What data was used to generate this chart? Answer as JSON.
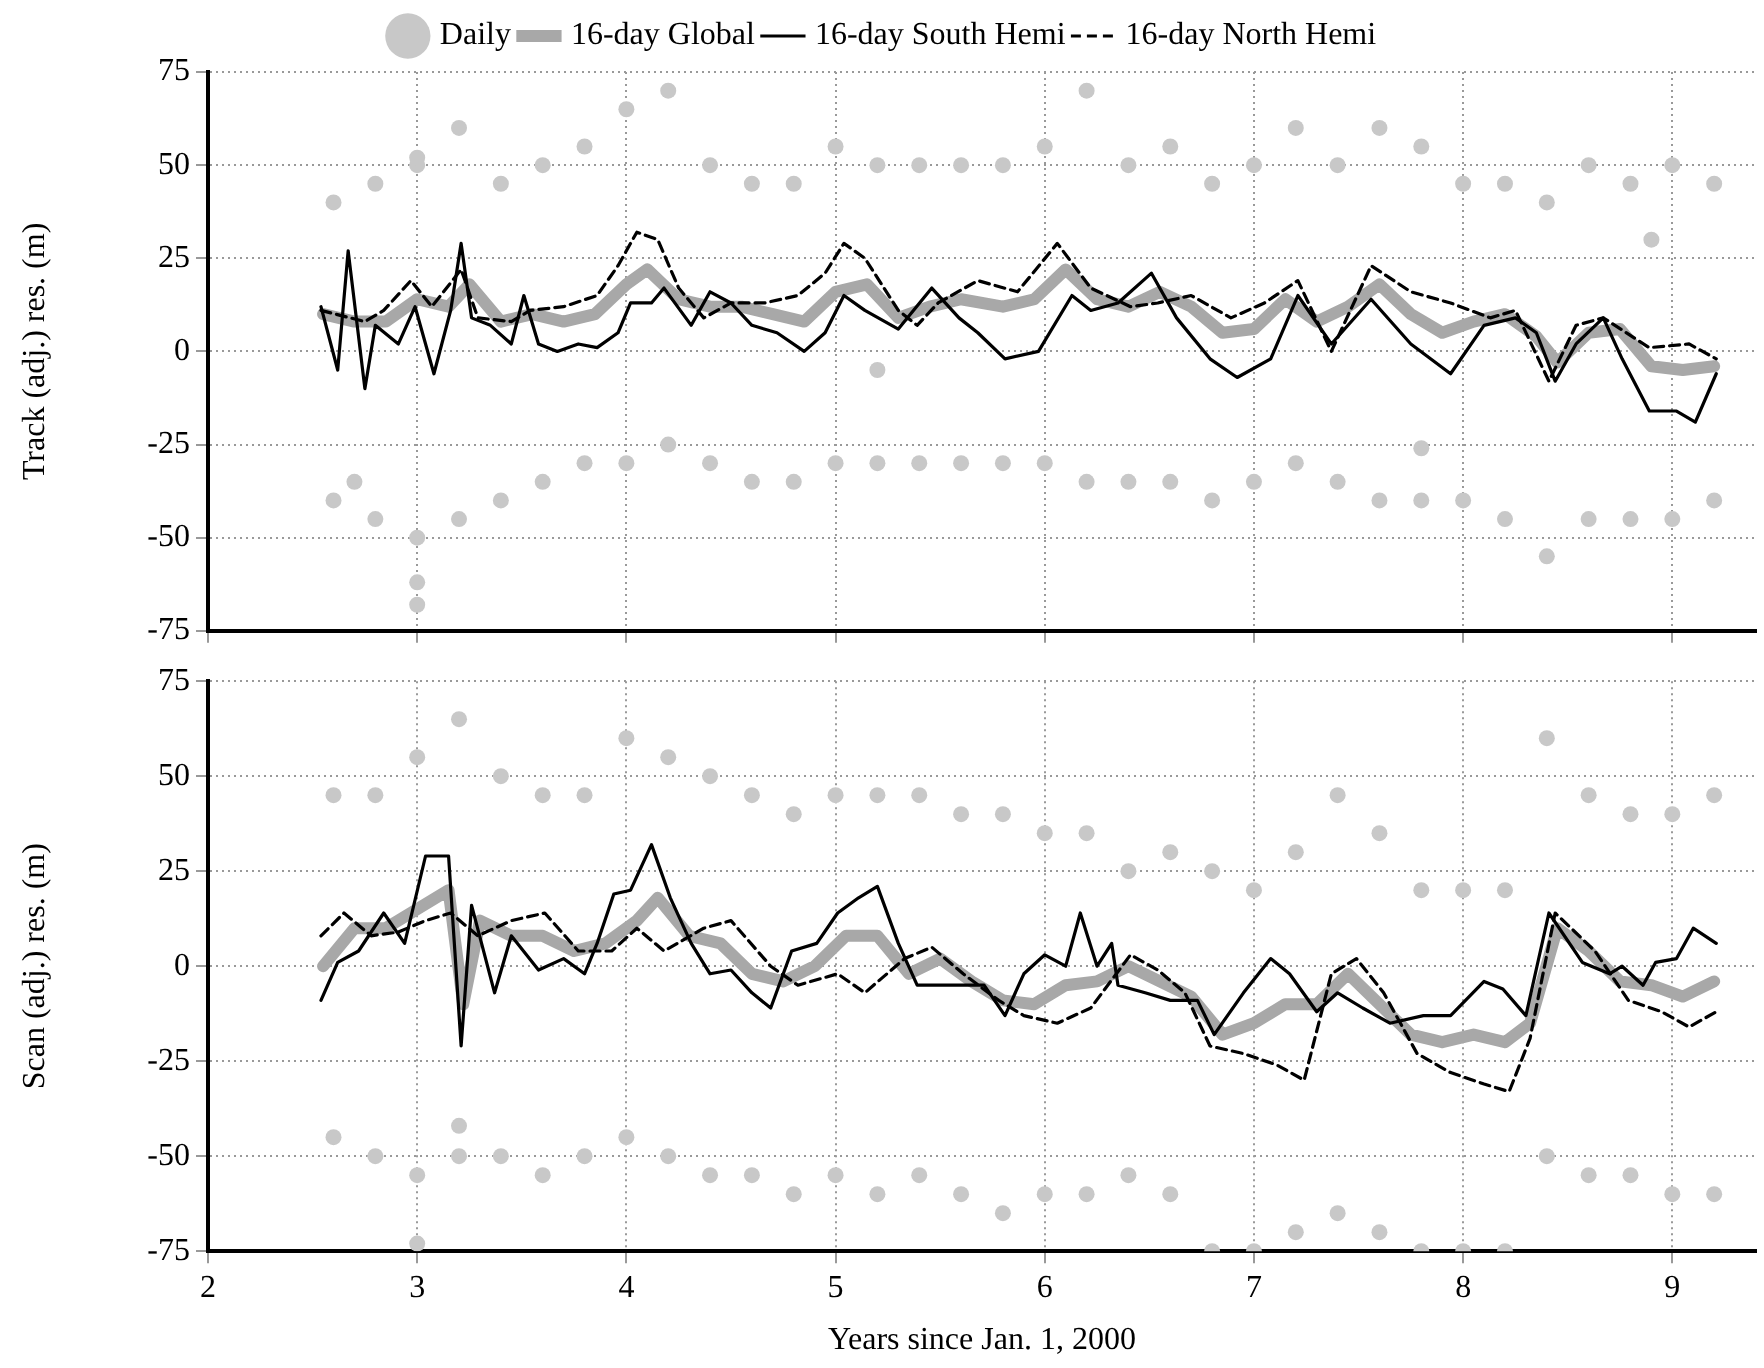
{
  "chart_data": [
    {
      "type": "line",
      "ylabel": "Track (adj.) res. (m)",
      "xlim": [
        2,
        9.4
      ],
      "xticks": [
        2,
        3,
        4,
        5,
        6,
        7,
        8,
        9
      ],
      "ylim": [
        -75,
        75
      ],
      "yticks": [
        -75,
        -50,
        -25,
        0,
        25,
        50,
        75
      ],
      "grid": true,
      "legend": "top",
      "tick_labels": "y",
      "series": [
        {
          "name": "Daily",
          "type": "scatter",
          "marker": "circle",
          "color": "#c8c8c8",
          "x": [
            2.6,
            2.6,
            2.8,
            2.8,
            3.0,
            3.0,
            3.2,
            3.2,
            3.4,
            3.4,
            3.6,
            3.6,
            3.8,
            3.8,
            4.0,
            4.0,
            4.2,
            4.2,
            4.4,
            4.4,
            4.6,
            4.6,
            4.8,
            4.8,
            5.0,
            5.0,
            5.2,
            5.2,
            5.4,
            5.4,
            5.6,
            5.6,
            5.8,
            5.8,
            6.0,
            6.0,
            6.2,
            6.2,
            6.4,
            6.4,
            6.6,
            6.6,
            6.8,
            6.8,
            7.0,
            7.0,
            7.2,
            7.2,
            7.4,
            7.4,
            7.6,
            7.6,
            7.8,
            7.8,
            8.0,
            8.0,
            8.2,
            8.2,
            8.4,
            8.4,
            8.6,
            8.6,
            8.8,
            8.8,
            9.0,
            9.0,
            9.2,
            9.2,
            3.0,
            3.0,
            3.0,
            2.7,
            7.8,
            8.9,
            5.2
          ],
          "values": [
            40,
            -40,
            45,
            -45,
            50,
            -50,
            60,
            -45,
            45,
            -40,
            50,
            -35,
            55,
            -30,
            65,
            -30,
            70,
            -25,
            50,
            -30,
            45,
            -35,
            45,
            -35,
            55,
            -30,
            50,
            -30,
            50,
            -30,
            50,
            -30,
            50,
            -30,
            55,
            -30,
            70,
            -35,
            50,
            -35,
            55,
            -35,
            45,
            -40,
            50,
            -35,
            60,
            -30,
            50,
            -35,
            60,
            -40,
            55,
            -40,
            45,
            -40,
            45,
            -45,
            40,
            -55,
            50,
            -45,
            45,
            -45,
            50,
            -45,
            45,
            -40,
            52,
            -62,
            -68,
            -35,
            -26,
            30,
            -5
          ]
        },
        {
          "name": "16-day Global",
          "color": "#a8a8a8",
          "marker": "none",
          "x": [
            2.55,
            2.7,
            2.85,
            3.0,
            3.15,
            3.25,
            3.4,
            3.55,
            3.7,
            3.85,
            4.0,
            4.1,
            4.25,
            4.4,
            4.55,
            4.7,
            4.85,
            5.0,
            5.15,
            5.3,
            5.45,
            5.6,
            5.8,
            5.95,
            6.1,
            6.25,
            6.4,
            6.55,
            6.7,
            6.85,
            7.0,
            7.15,
            7.3,
            7.45,
            7.6,
            7.75,
            7.9,
            8.05,
            8.2,
            8.35,
            8.45,
            8.6,
            8.75,
            8.9,
            9.05,
            9.2
          ],
          "values": [
            10,
            8,
            8,
            14,
            12,
            18,
            8,
            10,
            8,
            10,
            18,
            22,
            14,
            12,
            12,
            10,
            8,
            16,
            18,
            9,
            12,
            14,
            12,
            14,
            22,
            14,
            12,
            16,
            12,
            5,
            6,
            14,
            8,
            12,
            18,
            10,
            5,
            8,
            10,
            4,
            -3,
            5,
            6,
            -4,
            -5,
            -4
          ]
        },
        {
          "name": "16-day South Hemi",
          "color": "#000000",
          "marker": "none",
          "x": [
            2.54,
            2.62,
            2.67,
            2.75,
            2.8,
            2.91,
            2.99,
            3.08,
            3.16,
            3.21,
            3.26,
            3.35,
            3.45,
            3.51,
            3.58,
            3.67,
            3.77,
            3.86,
            3.96,
            4.02,
            4.12,
            4.18,
            4.31,
            4.4,
            4.5,
            4.6,
            4.72,
            4.85,
            4.95,
            5.04,
            5.14,
            5.3,
            5.46,
            5.59,
            5.68,
            5.81,
            5.97,
            6.13,
            6.22,
            6.35,
            6.51,
            6.63,
            6.79,
            6.92,
            7.08,
            7.21,
            7.37,
            7.56,
            7.75,
            7.94,
            8.1,
            8.25,
            8.35,
            8.44,
            8.54,
            8.67,
            8.76,
            8.89,
            9.02,
            9.11,
            9.21
          ],
          "values": [
            12,
            -5,
            27,
            -10,
            7,
            2,
            12,
            -6,
            11,
            29,
            9,
            7,
            2,
            15,
            2,
            0,
            2,
            1,
            5,
            13,
            13,
            17,
            7,
            16,
            13,
            7,
            5,
            0,
            5,
            15,
            11,
            6,
            17,
            9,
            5,
            -2,
            0,
            15,
            11,
            13,
            21,
            9,
            -2,
            -7,
            -2,
            15,
            2,
            14,
            2,
            -6,
            7,
            9,
            5,
            -8,
            2,
            9,
            -2,
            -16,
            -16,
            -19,
            -6
          ]
        },
        {
          "name": "16-day North Hemi",
          "color": "#000000",
          "marker": "none",
          "line_style": "dashed",
          "x": [
            2.54,
            2.75,
            2.84,
            2.97,
            3.07,
            3.21,
            3.29,
            3.45,
            3.54,
            3.7,
            3.86,
            3.96,
            4.05,
            4.15,
            4.25,
            4.37,
            4.5,
            4.66,
            4.82,
            4.95,
            5.04,
            5.14,
            5.3,
            5.39,
            5.49,
            5.68,
            5.87,
            6.06,
            6.22,
            6.41,
            6.54,
            6.7,
            6.89,
            7.05,
            7.21,
            7.37,
            7.56,
            7.75,
            7.94,
            8.13,
            8.25,
            8.41,
            8.54,
            8.67,
            8.89,
            9.08,
            9.21
          ],
          "values": [
            11,
            8,
            11,
            19,
            12,
            22,
            9,
            8,
            11,
            12,
            15,
            23,
            32,
            30,
            17,
            9,
            13,
            13,
            15,
            21,
            29,
            25,
            11,
            7,
            13,
            19,
            16,
            29,
            17,
            12,
            13,
            15,
            9,
            13,
            19,
            0,
            23,
            16,
            13,
            9,
            11,
            -8,
            7,
            9,
            1,
            2,
            -2
          ]
        }
      ]
    },
    {
      "type": "line",
      "ylabel": "Scan (adj.) res. (m)",
      "xlabel": "Years since Jan. 1, 2000",
      "xlim": [
        2,
        9.4
      ],
      "xticks": [
        2,
        3,
        4,
        5,
        6,
        7,
        8,
        9
      ],
      "ylim": [
        -75,
        75
      ],
      "yticks": [
        -75,
        -50,
        -25,
        0,
        25,
        50,
        75
      ],
      "grid": true,
      "series": [
        {
          "type": "scatter",
          "marker": "circle",
          "color": "#c8c8c8",
          "x": [
            2.6,
            2.6,
            2.8,
            2.8,
            3.0,
            3.0,
            3.2,
            3.2,
            3.4,
            3.4,
            3.6,
            3.6,
            3.8,
            3.8,
            4.0,
            4.0,
            4.2,
            4.2,
            4.4,
            4.4,
            4.6,
            4.6,
            4.8,
            4.8,
            5.0,
            5.0,
            5.2,
            5.2,
            5.4,
            5.4,
            5.6,
            5.6,
            5.8,
            5.8,
            6.0,
            6.0,
            6.2,
            6.2,
            6.4,
            6.4,
            6.6,
            6.6,
            6.8,
            6.8,
            7.0,
            7.0,
            7.2,
            7.2,
            7.4,
            7.4,
            7.6,
            7.6,
            7.8,
            7.8,
            8.0,
            8.0,
            8.2,
            8.2,
            8.4,
            8.4,
            8.6,
            8.6,
            8.8,
            8.8,
            9.0,
            9.0,
            9.2,
            9.2,
            3.0,
            3.2
          ],
          "values": [
            45,
            -45,
            45,
            -50,
            55,
            -55,
            65,
            -50,
            50,
            -50,
            45,
            -55,
            45,
            -50,
            60,
            -45,
            55,
            -50,
            50,
            -55,
            45,
            -55,
            40,
            -60,
            45,
            -55,
            45,
            -60,
            45,
            -55,
            40,
            -60,
            40,
            -65,
            35,
            -60,
            35,
            -60,
            25,
            -55,
            30,
            -60,
            25,
            -75,
            20,
            -75,
            30,
            -70,
            45,
            -65,
            35,
            -70,
            20,
            -75,
            20,
            -75,
            20,
            -75,
            60,
            -50,
            45,
            -55,
            40,
            -55,
            40,
            -60,
            45,
            -60,
            -73,
            -42
          ]
        },
        {
          "color": "#a8a8a8",
          "marker": "none",
          "x": [
            2.55,
            2.7,
            2.85,
            3.0,
            3.15,
            3.22,
            3.3,
            3.45,
            3.6,
            3.75,
            3.9,
            4.05,
            4.15,
            4.3,
            4.45,
            4.6,
            4.75,
            4.9,
            5.05,
            5.2,
            5.35,
            5.5,
            5.65,
            5.8,
            5.95,
            6.1,
            6.25,
            6.4,
            6.55,
            6.7,
            6.85,
            7.0,
            7.15,
            7.3,
            7.45,
            7.6,
            7.75,
            7.9,
            8.05,
            8.2,
            8.32,
            8.45,
            8.6,
            8.75,
            8.9,
            9.05,
            9.2
          ],
          "values": [
            0,
            10,
            10,
            15,
            20,
            -10,
            12,
            8,
            8,
            4,
            6,
            12,
            18,
            8,
            6,
            -2,
            -4,
            0,
            8,
            8,
            -2,
            2,
            -4,
            -9,
            -10,
            -5,
            -4,
            0,
            -4,
            -8,
            -18,
            -15,
            -10,
            -10,
            -2,
            -10,
            -18,
            -20,
            -18,
            -20,
            -15,
            10,
            4,
            -4,
            -5,
            -8,
            -4
          ]
        },
        {
          "color": "#000000",
          "marker": "none",
          "x": [
            2.54,
            2.62,
            2.72,
            2.84,
            2.94,
            3.04,
            3.15,
            3.21,
            3.26,
            3.37,
            3.45,
            3.58,
            3.7,
            3.8,
            3.86,
            3.94,
            4.02,
            4.12,
            4.21,
            4.31,
            4.4,
            4.5,
            4.6,
            4.69,
            4.79,
            4.91,
            5.01,
            5.11,
            5.2,
            5.3,
            5.39,
            5.55,
            5.71,
            5.81,
            5.9,
            6.0,
            6.1,
            6.17,
            6.25,
            6.32,
            6.35,
            6.48,
            6.6,
            6.73,
            6.81,
            6.95,
            7.08,
            7.17,
            7.3,
            7.4,
            7.52,
            7.65,
            7.81,
            7.94,
            8.1,
            8.19,
            8.3,
            8.41,
            8.57,
            8.7,
            8.76,
            8.86,
            8.92,
            9.02,
            9.1,
            9.21
          ],
          "values": [
            -9,
            1,
            4,
            14,
            6,
            29,
            29,
            -21,
            16,
            -7,
            8,
            -1,
            2,
            -2,
            6,
            19,
            20,
            32,
            18,
            6,
            -2,
            -1,
            -7,
            -11,
            4,
            6,
            14,
            18,
            21,
            6,
            -5,
            -5,
            -5,
            -13,
            -2,
            3,
            0,
            14,
            0,
            6,
            -5,
            -7,
            -9,
            -9,
            -18,
            -7,
            2,
            -2,
            -12,
            -7,
            -11,
            -15,
            -13,
            -13,
            -4,
            -6,
            -13,
            14,
            1,
            -2,
            0,
            -5,
            1,
            2,
            10,
            6
          ]
        },
        {
          "color": "#000000",
          "marker": "none",
          "line_style": "dashed",
          "x": [
            2.54,
            2.65,
            2.78,
            2.91,
            3.04,
            3.16,
            3.29,
            3.45,
            3.61,
            3.77,
            3.93,
            4.05,
            4.18,
            4.37,
            4.5,
            4.69,
            4.82,
            5.01,
            5.14,
            5.33,
            5.46,
            5.61,
            5.78,
            5.9,
            6.06,
            6.22,
            6.41,
            6.54,
            6.67,
            6.79,
            6.95,
            7.11,
            7.24,
            7.37,
            7.49,
            7.62,
            7.78,
            7.94,
            8.1,
            8.22,
            8.32,
            8.44,
            8.63,
            8.79,
            8.95,
            9.08,
            9.21
          ],
          "values": [
            8,
            14,
            8,
            9,
            12,
            14,
            8,
            12,
            14,
            4,
            4,
            10,
            4,
            10,
            12,
            0,
            -5,
            -2,
            -7,
            2,
            5,
            -2,
            -9,
            -13,
            -15,
            -11,
            3,
            -1,
            -7,
            -21,
            -23,
            -26,
            -30,
            -2,
            2,
            -7,
            -23,
            -28,
            -31,
            -33,
            -19,
            14,
            4,
            -9,
            -12,
            -16,
            -12
          ]
        }
      ]
    }
  ]
}
